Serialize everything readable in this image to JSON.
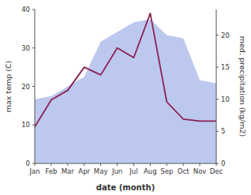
{
  "chart_data": {
    "type": "line",
    "categories": [
      "Jan",
      "Feb",
      "Mar",
      "Apr",
      "May",
      "Jun",
      "Jul",
      "Aug",
      "Sep",
      "Oct",
      "Nov",
      "Dec"
    ],
    "xlabel": "date (month)",
    "ylabel": "max temp (C)",
    "y2label": "med. precipitation (kg/m2)",
    "ylim": [
      0,
      40
    ],
    "yticks": [
      0,
      10,
      20,
      30,
      40
    ],
    "y2lim": [
      0,
      24
    ],
    "y2ticks": [
      0,
      5,
      10,
      15,
      20
    ],
    "grid": false,
    "series": [
      {
        "type": "area",
        "axis": "y2",
        "color": "#bcc8ee",
        "values": [
          10.0,
          10.5,
          12.0,
          13.5,
          19.0,
          20.5,
          22.0,
          22.5,
          20.0,
          19.5,
          13.0,
          12.5
        ]
      },
      {
        "type": "line",
        "color": "#8B2252",
        "values": [
          9.5,
          16.5,
          19.0,
          25.0,
          23.0,
          30.0,
          27.5,
          39.0,
          16.0,
          11.5,
          11.0,
          11.0
        ]
      }
    ]
  }
}
